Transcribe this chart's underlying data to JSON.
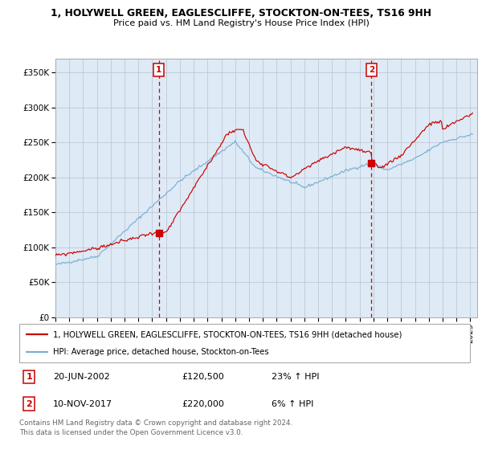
{
  "title_line1": "1, HOLYWELL GREEN, EAGLESCLIFFE, STOCKTON-ON-TEES, TS16 9HH",
  "title_line2": "Price paid vs. HM Land Registry's House Price Index (HPI)",
  "ylim": [
    0,
    370000
  ],
  "xlim_start": 1995.0,
  "xlim_end": 2025.5,
  "ytick_values": [
    0,
    50000,
    100000,
    150000,
    200000,
    250000,
    300000,
    350000
  ],
  "ytick_labels": [
    "£0",
    "£50K",
    "£100K",
    "£150K",
    "£200K",
    "£250K",
    "£300K",
    "£350K"
  ],
  "xtick_years": [
    1995,
    1996,
    1997,
    1998,
    1999,
    2000,
    2001,
    2002,
    2003,
    2004,
    2005,
    2006,
    2007,
    2008,
    2009,
    2010,
    2011,
    2012,
    2013,
    2014,
    2015,
    2016,
    2017,
    2018,
    2019,
    2020,
    2021,
    2022,
    2023,
    2024,
    2025
  ],
  "sale1_x": 2002.47,
  "sale1_y": 120500,
  "sale1_label": "1",
  "sale2_x": 2017.86,
  "sale2_y": 220000,
  "sale2_label": "2",
  "legend_line1": "1, HOLYWELL GREEN, EAGLESCLIFFE, STOCKTON-ON-TEES, TS16 9HH (detached house)",
  "legend_line2": "HPI: Average price, detached house, Stockton-on-Tees",
  "sale1_date": "20-JUN-2002",
  "sale1_price": "£120,500",
  "sale1_hpi": "23% ↑ HPI",
  "sale2_date": "10-NOV-2017",
  "sale2_price": "£220,000",
  "sale2_hpi": "6% ↑ HPI",
  "footnote": "Contains HM Land Registry data © Crown copyright and database right 2024.\nThis data is licensed under the Open Government Licence v3.0.",
  "hpi_color": "#7bafd4",
  "price_color": "#cc0000",
  "bg_color": "#deeaf5",
  "grid_color": "#c0c8d8",
  "sale_marker_color": "#cc0000",
  "vline_color": "#cc0000",
  "box_color": "#cc0000",
  "white": "#ffffff",
  "border_color": "#aaaaaa",
  "footnote_color": "#666666"
}
